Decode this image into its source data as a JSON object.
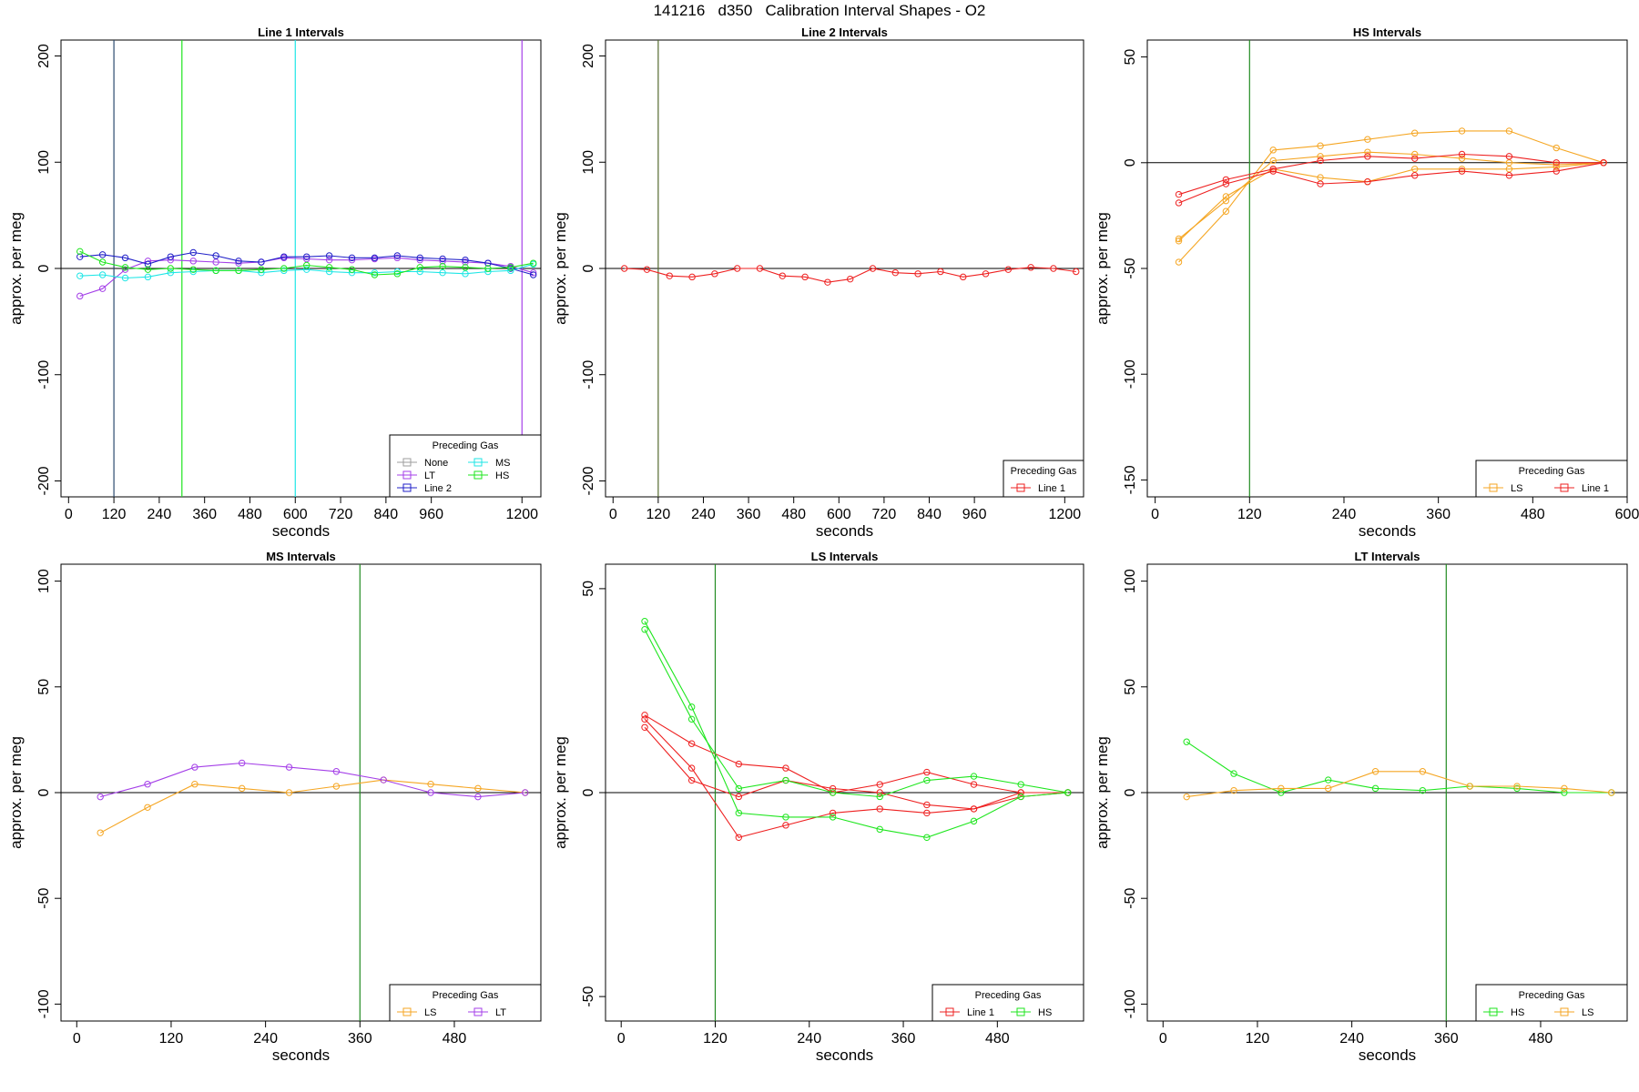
{
  "page_title": "141216   d350   Calibration Interval Shapes - O2",
  "colors": {
    "None": "#9e9e9e",
    "LT": "#a43fe8",
    "Line 2": "#2020c8",
    "MS": "#1ee6e6",
    "HS": "#1ee61e",
    "LS": "#f5a623",
    "Line 1": "#ee2020",
    "axis": "#000000",
    "zero_line": "#000000",
    "interval_marker": "#228b22"
  },
  "chart_data": [
    {
      "type": "line",
      "title": "Line 1 Intervals",
      "xlabel": "seconds",
      "ylabel": "approx. per meg",
      "xlim": [
        -20,
        1250
      ],
      "ylim": [
        -215,
        215
      ],
      "xticks": [
        0,
        120,
        240,
        360,
        480,
        600,
        720,
        840,
        960,
        1200
      ],
      "yticks": [
        -200,
        -100,
        0,
        100,
        200
      ],
      "hline": 0,
      "vlines": [
        {
          "x": 120,
          "color": "#2c4a6e"
        },
        {
          "x": 300,
          "color": "#1ee61e"
        },
        {
          "x": 600,
          "color": "#1ee6e6"
        },
        {
          "x": 1200,
          "color": "#a43fe8"
        }
      ],
      "legend": {
        "title": "Preceding Gas",
        "position": "bottom-right",
        "columns": 2,
        "entries": [
          "None",
          "LT",
          "Line 2",
          "MS",
          "HS"
        ]
      },
      "series": [
        {
          "name": "LT",
          "x": [
            30,
            90,
            150,
            210,
            270,
            330,
            390,
            450,
            510,
            570,
            630,
            690,
            750,
            810,
            870,
            930,
            990,
            1050,
            1110,
            1170,
            1230
          ],
          "y": [
            -26,
            -19,
            -1,
            7,
            8,
            7,
            6,
            5,
            6,
            10,
            9,
            8,
            8,
            9,
            10,
            8,
            7,
            6,
            5,
            2,
            -4
          ]
        },
        {
          "name": "Line 2",
          "x": [
            30,
            90,
            150,
            210,
            270,
            330,
            390,
            450,
            510,
            570,
            630,
            690,
            750,
            810,
            870,
            930,
            990,
            1050,
            1110,
            1170,
            1230
          ],
          "y": [
            11,
            13,
            10,
            4,
            11,
            15,
            12,
            7,
            6,
            11,
            11,
            12,
            10,
            10,
            12,
            10,
            9,
            8,
            5,
            0,
            -6
          ]
        },
        {
          "name": "MS",
          "x": [
            30,
            90,
            150,
            210,
            270,
            330,
            390,
            450,
            510,
            570,
            630,
            690,
            750,
            810,
            870,
            930,
            990,
            1050,
            1110,
            1170,
            1230
          ],
          "y": [
            -7,
            -6,
            -9,
            -8,
            -4,
            -3,
            -2,
            -2,
            -4,
            -2,
            -1,
            -3,
            -4,
            -4,
            -3,
            -3,
            -4,
            -5,
            -3,
            -2,
            4
          ]
        },
        {
          "name": "HS",
          "x": [
            30,
            90,
            150,
            210,
            270,
            330,
            390,
            450,
            510,
            570,
            630,
            690,
            750,
            810,
            870,
            930,
            990,
            1050,
            1110,
            1170,
            1230
          ],
          "y": [
            16,
            6,
            1,
            -1,
            0,
            -1,
            -2,
            -2,
            -1,
            0,
            3,
            1,
            -1,
            -6,
            -5,
            1,
            2,
            1,
            0,
            1,
            5
          ]
        }
      ]
    },
    {
      "type": "line",
      "title": "Line 2 Intervals",
      "xlabel": "seconds",
      "ylabel": "approx. per meg",
      "xlim": [
        -20,
        1250
      ],
      "ylim": [
        -215,
        215
      ],
      "xticks": [
        0,
        120,
        240,
        360,
        480,
        600,
        720,
        840,
        960,
        1200
      ],
      "yticks": [
        -200,
        -100,
        0,
        100,
        200
      ],
      "hline": 0,
      "vlines": [
        {
          "x": 120,
          "color": "#556b2f"
        }
      ],
      "legend": {
        "title": "Preceding Gas",
        "position": "bottom-right",
        "columns": 1,
        "entries": [
          "Line 1"
        ]
      },
      "series": [
        {
          "name": "Line 1",
          "x": [
            30,
            90,
            150,
            210,
            270,
            330,
            390,
            450,
            510,
            570,
            630,
            690,
            750,
            810,
            870,
            930,
            990,
            1050,
            1110,
            1170,
            1230
          ],
          "y": [
            0,
            -1,
            -7,
            -8,
            -5,
            0,
            0,
            -7,
            -8,
            -13,
            -10,
            0,
            -4,
            -5,
            -3,
            -8,
            -5,
            -1,
            1,
            0,
            -3
          ]
        }
      ]
    },
    {
      "type": "line",
      "title": "HS Intervals",
      "xlabel": "seconds",
      "ylabel": "approx. per meg",
      "xlim": [
        -10,
        600
      ],
      "ylim": [
        -158,
        58
      ],
      "xticks": [
        0,
        120,
        240,
        360,
        480,
        600
      ],
      "yticks": [
        -150,
        -100,
        -50,
        0,
        50
      ],
      "hline": 0,
      "vlines": [
        {
          "x": 120,
          "color": "#228b22"
        }
      ],
      "legend": {
        "title": "Preceding Gas",
        "position": "bottom-right",
        "columns": 2,
        "entries": [
          "LS",
          "Line 1"
        ]
      },
      "series": [
        {
          "name": "LS",
          "x": [
            30,
            90,
            150,
            210,
            270,
            330,
            390,
            450,
            510,
            570
          ],
          "y": [
            -47,
            -23,
            6,
            8,
            11,
            14,
            15,
            15,
            7,
            0
          ]
        },
        {
          "name": "LS",
          "x": [
            30,
            90,
            150,
            210,
            270,
            330,
            390,
            450,
            510,
            570
          ],
          "y": [
            -36,
            -18,
            1,
            3,
            5,
            4,
            2,
            0,
            -1,
            0
          ]
        },
        {
          "name": "LS",
          "x": [
            30,
            90,
            150,
            210,
            270,
            330,
            390,
            450,
            510,
            570
          ],
          "y": [
            -37,
            -16,
            -3,
            -7,
            -9,
            -3,
            -3,
            -3,
            -2,
            0
          ]
        },
        {
          "name": "Line 1",
          "x": [
            30,
            90,
            150,
            210,
            270,
            330,
            390,
            450,
            510,
            570
          ],
          "y": [
            -15,
            -8,
            -3,
            1,
            3,
            2,
            4,
            3,
            0,
            0
          ]
        },
        {
          "name": "Line 1",
          "x": [
            30,
            90,
            150,
            210,
            270,
            330,
            390,
            450,
            510,
            570
          ],
          "y": [
            -19,
            -10,
            -4,
            -10,
            -9,
            -6,
            -4,
            -6,
            -4,
            0
          ]
        }
      ]
    },
    {
      "type": "line",
      "title": "MS Intervals",
      "xlabel": "seconds",
      "ylabel": "approx. per meg",
      "xlim": [
        -20,
        590
      ],
      "ylim": [
        -108,
        108
      ],
      "xticks": [
        0,
        120,
        240,
        360,
        480
      ],
      "yticks": [
        -100,
        -50,
        0,
        50,
        100
      ],
      "hline": 0,
      "vlines": [
        {
          "x": 360,
          "color": "#228b22"
        }
      ],
      "legend": {
        "title": "Preceding Gas",
        "position": "bottom-right",
        "columns": 2,
        "entries": [
          "LS",
          "LT"
        ]
      },
      "series": [
        {
          "name": "LS",
          "x": [
            30,
            90,
            150,
            210,
            270,
            330,
            390,
            450,
            510,
            570
          ],
          "y": [
            -19,
            -7,
            4,
            2,
            0,
            3,
            6,
            4,
            2,
            0
          ]
        },
        {
          "name": "LT",
          "x": [
            30,
            90,
            150,
            210,
            270,
            330,
            390,
            450,
            510,
            570
          ],
          "y": [
            -2,
            4,
            12,
            14,
            12,
            10,
            6,
            0,
            -2,
            0
          ]
        }
      ]
    },
    {
      "type": "line",
      "title": "LS Intervals",
      "xlabel": "seconds",
      "ylabel": "approx. per meg",
      "xlim": [
        -20,
        590
      ],
      "ylim": [
        -56,
        56
      ],
      "xticks": [
        0,
        120,
        240,
        360,
        480
      ],
      "yticks": [
        -50,
        0,
        50
      ],
      "hline": 0,
      "vlines": [
        {
          "x": 120,
          "color": "#228b22"
        }
      ],
      "legend": {
        "title": "Preceding Gas",
        "position": "bottom-right",
        "columns": 2,
        "entries": [
          "Line 1",
          "HS"
        ]
      },
      "series": [
        {
          "name": "Line 1",
          "x": [
            30,
            90,
            150,
            210,
            270,
            330,
            390,
            450,
            510,
            570
          ],
          "y": [
            19,
            12,
            7,
            6,
            0,
            2,
            5,
            2,
            0,
            0
          ]
        },
        {
          "name": "Line 1",
          "x": [
            30,
            90,
            150,
            210,
            270,
            330,
            390,
            450,
            510,
            570
          ],
          "y": [
            18,
            6,
            -11,
            -8,
            -5,
            -4,
            -5,
            -4,
            -1,
            0
          ]
        },
        {
          "name": "Line 1",
          "x": [
            30,
            90,
            150,
            210,
            270,
            330,
            390,
            450,
            510,
            570
          ],
          "y": [
            16,
            3,
            -1,
            3,
            1,
            0,
            -3,
            -4,
            0,
            0
          ]
        },
        {
          "name": "HS",
          "x": [
            30,
            90,
            150,
            210,
            270,
            330,
            390,
            450,
            510,
            570
          ],
          "y": [
            42,
            21,
            -5,
            -6,
            -6,
            -9,
            -11,
            -7,
            -1,
            0
          ]
        },
        {
          "name": "HS",
          "x": [
            30,
            90,
            150,
            210,
            270,
            330,
            390,
            450,
            510,
            570
          ],
          "y": [
            40,
            18,
            1,
            3,
            0,
            -1,
            3,
            4,
            2,
            0
          ]
        }
      ]
    },
    {
      "type": "line",
      "title": "LT Intervals",
      "xlabel": "seconds",
      "ylabel": "approx. per meg",
      "xlim": [
        -20,
        590
      ],
      "ylim": [
        -108,
        108
      ],
      "xticks": [
        0,
        120,
        240,
        360,
        480
      ],
      "yticks": [
        -100,
        -50,
        0,
        50,
        100
      ],
      "hline": 0,
      "vlines": [
        {
          "x": 360,
          "color": "#228b22"
        }
      ],
      "legend": {
        "title": "Preceding Gas",
        "position": "bottom-right",
        "columns": 2,
        "entries": [
          "HS",
          "LS"
        ]
      },
      "series": [
        {
          "name": "HS",
          "x": [
            30,
            90,
            150,
            210,
            270,
            330,
            390,
            450,
            510,
            570
          ],
          "y": [
            24,
            9,
            0,
            6,
            2,
            1,
            3,
            2,
            0,
            0
          ]
        },
        {
          "name": "LS",
          "x": [
            30,
            90,
            150,
            210,
            270,
            330,
            390,
            450,
            510,
            570
          ],
          "y": [
            -2,
            1,
            2,
            2,
            10,
            10,
            3,
            3,
            2,
            0
          ]
        }
      ]
    }
  ]
}
